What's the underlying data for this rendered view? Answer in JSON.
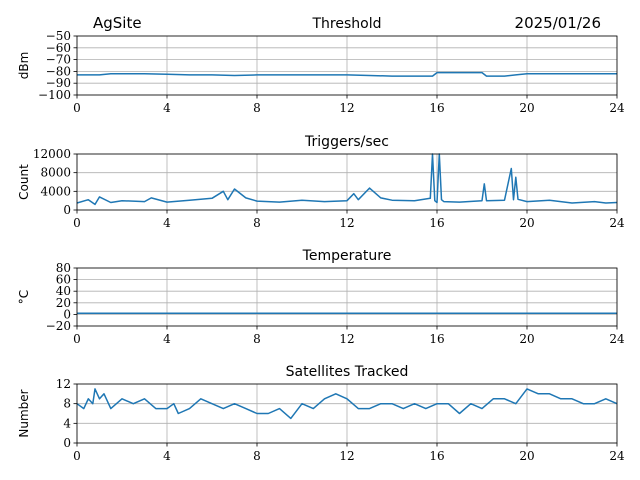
{
  "header": {
    "site": "AgSite",
    "date": "2025/01/26"
  },
  "colors": {
    "series": "#1f77b4",
    "grid": "#b0b0b0",
    "axis": "#000000"
  },
  "chart_data": [
    {
      "type": "line",
      "title": "Threshold",
      "ylabel": "dBm",
      "xlim": [
        0,
        24
      ],
      "ylim": [
        -100,
        -50
      ],
      "xticks": [
        0,
        4,
        8,
        12,
        16,
        20,
        24
      ],
      "yticks": [
        -100,
        -90,
        -80,
        -70,
        -60,
        -50
      ],
      "grid": true,
      "series": [
        {
          "x": [
            0,
            1,
            1.5,
            2,
            3,
            4,
            5,
            6,
            7,
            8,
            9,
            10,
            11,
            12,
            13,
            14,
            15,
            15.8,
            16,
            16.5,
            17,
            18,
            18.2,
            19,
            19.5,
            20,
            21,
            22,
            23,
            24
          ],
          "y": [
            -83,
            -83,
            -82,
            -82,
            -82,
            -82.5,
            -83,
            -83,
            -83.5,
            -83,
            -83,
            -83,
            -83,
            -83,
            -83.5,
            -84,
            -84,
            -84,
            -81,
            -81,
            -81,
            -81,
            -84,
            -84,
            -83,
            -82,
            -82,
            -82,
            -82,
            -82
          ]
        }
      ]
    },
    {
      "type": "line",
      "title": "Triggers/sec",
      "ylabel": "Count",
      "xlim": [
        0,
        24
      ],
      "ylim": [
        0,
        12000
      ],
      "xticks": [
        0,
        4,
        8,
        12,
        16,
        20,
        24
      ],
      "yticks": [
        0,
        4000,
        8000,
        12000
      ],
      "grid": true,
      "series": [
        {
          "x": [
            0,
            0.5,
            0.8,
            1,
            1.5,
            2,
            3,
            3.3,
            4,
            5,
            6,
            6.5,
            6.7,
            7,
            7.5,
            8,
            9,
            10,
            11,
            12,
            12.3,
            12.5,
            13,
            13.5,
            14,
            15,
            15.7,
            15.8,
            15.9,
            16.0,
            16.1,
            16.2,
            16.3,
            17,
            18,
            18.1,
            18.2,
            19,
            19.3,
            19.4,
            19.5,
            19.6,
            20,
            21,
            22,
            23,
            23.5,
            24
          ],
          "y": [
            1500,
            2200,
            1200,
            2800,
            1600,
            2000,
            1800,
            2600,
            1700,
            2100,
            2500,
            4000,
            2200,
            4500,
            2600,
            1900,
            1700,
            2100,
            1800,
            2000,
            3500,
            2200,
            4700,
            2600,
            2100,
            2000,
            2500,
            12000,
            2000,
            1600,
            12000,
            2200,
            1800,
            1700,
            2000,
            5600,
            2000,
            2100,
            8900,
            2200,
            7000,
            2300,
            1800,
            2100,
            1500,
            1800,
            1500,
            1600
          ]
        }
      ]
    },
    {
      "type": "line",
      "title": "Temperature",
      "ylabel": "°C",
      "xlim": [
        0,
        24
      ],
      "ylim": [
        -20,
        80
      ],
      "xticks": [
        0,
        4,
        8,
        12,
        16,
        20,
        24
      ],
      "yticks": [
        -20,
        0,
        20,
        40,
        60,
        80
      ],
      "grid": true,
      "series": [
        {
          "x": [
            0,
            24
          ],
          "y": [
            2,
            2
          ]
        }
      ]
    },
    {
      "type": "line",
      "title": "Satellites Tracked",
      "ylabel": "Number",
      "xlim": [
        0,
        24
      ],
      "ylim": [
        0,
        12
      ],
      "xticks": [
        0,
        4,
        8,
        12,
        16,
        20,
        24
      ],
      "yticks": [
        0,
        4,
        8,
        12
      ],
      "grid": true,
      "series": [
        {
          "x": [
            0,
            0.3,
            0.5,
            0.7,
            0.8,
            1.0,
            1.2,
            1.5,
            2,
            2.5,
            3,
            3.5,
            4,
            4.3,
            4.5,
            5,
            5.5,
            6,
            6.5,
            7,
            7.5,
            8,
            8.5,
            9,
            9.5,
            10,
            10.5,
            11,
            11.5,
            12,
            12.5,
            13,
            13.5,
            14,
            14.5,
            15,
            15.5,
            16,
            16.5,
            17,
            17.5,
            18,
            18.5,
            19,
            19.5,
            20,
            20.5,
            21,
            21.5,
            22,
            22.5,
            23,
            23.5,
            24
          ],
          "y": [
            8,
            7,
            9,
            8,
            11,
            9,
            10,
            7,
            9,
            8,
            9,
            7,
            7,
            8,
            6,
            7,
            9,
            8,
            7,
            8,
            7,
            6,
            6,
            7,
            5,
            8,
            7,
            9,
            10,
            9,
            7,
            7,
            8,
            8,
            7,
            8,
            7,
            8,
            8,
            6,
            8,
            7,
            9,
            9,
            8,
            11,
            10,
            10,
            9,
            9,
            8,
            8,
            9,
            8
          ]
        }
      ]
    }
  ]
}
